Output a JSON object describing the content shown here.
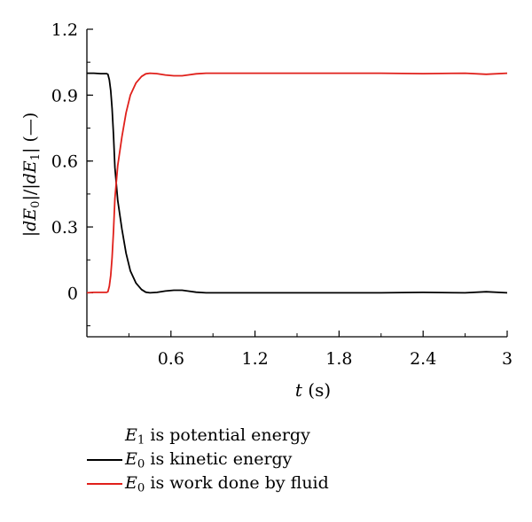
{
  "chart_data": {
    "type": "line",
    "xlabel_var": "t",
    "xlabel_unit": "(s)",
    "ylabel": "|dE0|/|dE1| (—)",
    "xlim": [
      0,
      3
    ],
    "ylim": [
      -0.2,
      1.2
    ],
    "x_ticks": [
      "0.6",
      "1.2",
      "1.8",
      "2.4",
      "3"
    ],
    "y_ticks": [
      "1.2",
      "0.9",
      "0.6",
      "0.3",
      "0"
    ],
    "grid": false,
    "legend_position": "below",
    "colors": {
      "kinetic": "#000000",
      "fluid": "#e0201b",
      "axis": "#000000"
    },
    "series": [
      {
        "name": "E0 is kinetic energy",
        "color": "#000000",
        "x": [
          0.0,
          0.05,
          0.1,
          0.14,
          0.15,
          0.16,
          0.17,
          0.18,
          0.19,
          0.2,
          0.22,
          0.25,
          0.28,
          0.31,
          0.35,
          0.39,
          0.42,
          0.45,
          0.5,
          0.56,
          0.62,
          0.68,
          0.72,
          0.78,
          0.85,
          1.0,
          1.2,
          1.5,
          1.8,
          2.1,
          2.4,
          2.7,
          2.85,
          3.0
        ],
        "y": [
          1.0,
          1.0,
          0.998,
          0.998,
          0.995,
          0.97,
          0.92,
          0.84,
          0.72,
          0.57,
          0.42,
          0.29,
          0.18,
          0.1,
          0.045,
          0.015,
          0.003,
          0.0,
          0.002,
          0.008,
          0.012,
          0.012,
          0.008,
          0.003,
          0.0,
          0.0,
          0.0,
          0.0,
          0.0,
          0.0,
          0.002,
          0.0,
          0.005,
          0.0
        ]
      },
      {
        "name": "E0 is work done by fluid",
        "color": "#e0201b",
        "x": [
          0.0,
          0.05,
          0.1,
          0.14,
          0.15,
          0.16,
          0.17,
          0.18,
          0.19,
          0.2,
          0.22,
          0.25,
          0.28,
          0.31,
          0.35,
          0.39,
          0.42,
          0.45,
          0.5,
          0.56,
          0.62,
          0.68,
          0.72,
          0.78,
          0.85,
          1.0,
          1.2,
          1.5,
          1.8,
          2.1,
          2.4,
          2.7,
          2.85,
          3.0
        ],
        "y": [
          0.0,
          0.002,
          0.002,
          0.002,
          0.005,
          0.03,
          0.08,
          0.16,
          0.28,
          0.43,
          0.58,
          0.71,
          0.82,
          0.9,
          0.955,
          0.985,
          0.997,
          1.0,
          0.998,
          0.992,
          0.988,
          0.988,
          0.992,
          0.997,
          1.0,
          1.0,
          1.0,
          1.0,
          1.0,
          1.0,
          0.998,
          1.0,
          0.995,
          1.0
        ]
      }
    ]
  },
  "legend": {
    "note_var": "E",
    "note_sub": "1",
    "note_text": " is potential energy",
    "items": [
      {
        "var": "E",
        "sub": "0",
        "text": " is kinetic energy",
        "color": "#000000"
      },
      {
        "var": "E",
        "sub": "0",
        "text": " is work done by fluid",
        "color": "#e0201b"
      }
    ]
  }
}
